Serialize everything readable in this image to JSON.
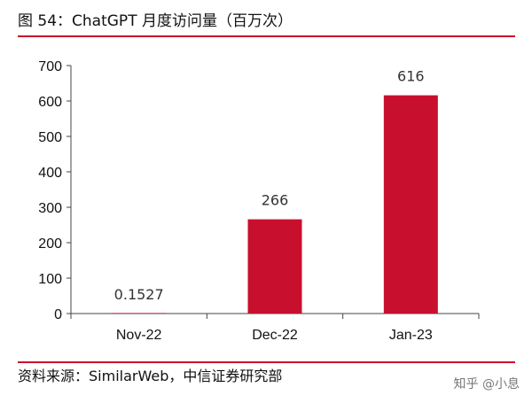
{
  "header": {
    "title": "图 54：ChatGPT 月度访问量（百万次）"
  },
  "footer": {
    "source": "资料来源：SimilarWeb，中信证券研究部",
    "watermark": "知乎 @小息"
  },
  "colors": {
    "accent": "#c8102e",
    "bar": "#c8102e"
  },
  "chart_data": {
    "type": "bar",
    "categories": [
      "Nov-22",
      "Dec-22",
      "Jan-23"
    ],
    "values": [
      0.1527,
      266,
      616
    ],
    "data_labels": [
      "0.1527",
      "266",
      "616"
    ],
    "title": "",
    "xlabel": "",
    "ylabel": "",
    "ylim": [
      0,
      700
    ],
    "yticks": [
      0,
      100,
      200,
      300,
      400,
      500,
      600,
      700
    ],
    "grid": false,
    "legend": "none"
  }
}
